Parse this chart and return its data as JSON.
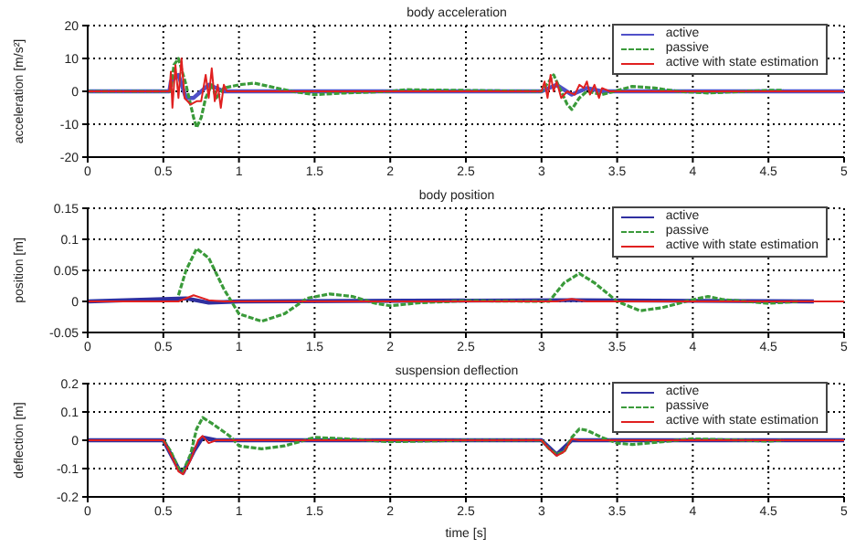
{
  "chart_data": [
    {
      "type": "line",
      "title": "body acceleration",
      "ylabel": "acceleration [m/s²]",
      "xlim": [
        0,
        5
      ],
      "xticks": [
        0,
        0.5,
        1,
        1.5,
        2,
        2.5,
        3,
        3.5,
        4,
        4.5,
        5
      ],
      "ylim": [
        -20,
        20
      ],
      "yticks": [
        -20,
        -10,
        0,
        10,
        20
      ],
      "grid": true,
      "legend": "top right",
      "series": [
        {
          "name": "active",
          "color": "#5050c8",
          "line_style": "solid",
          "x": [
            0,
            0.54,
            0.55,
            0.6,
            0.65,
            0.7,
            0.8,
            0.9,
            1,
            3,
            3.1,
            3.2,
            3.3,
            3.4,
            5
          ],
          "values": [
            0,
            0,
            3,
            5,
            -2,
            -2,
            2,
            0,
            0,
            0,
            2,
            -1,
            1,
            0,
            0
          ]
        },
        {
          "name": "passive",
          "color": "#3a9a3a",
          "line_style": "dashed",
          "x": [
            0,
            0.55,
            0.57,
            0.6,
            0.65,
            0.7,
            0.72,
            0.75,
            0.78,
            0.82,
            0.85,
            0.9,
            1,
            1.1,
            1.2,
            1.35,
            1.5,
            1.7,
            2,
            2.1,
            3,
            3.05,
            3.08,
            3.12,
            3.17,
            3.2,
            3.25,
            3.3,
            3.4,
            3.6,
            3.75,
            3.9,
            4.1,
            4.5,
            4.6
          ],
          "values": [
            0,
            0,
            8,
            10,
            2,
            -8,
            -11,
            -8,
            -2,
            2,
            -2,
            1,
            2,
            2.5,
            1.5,
            0,
            -1,
            -0.5,
            0,
            0.5,
            0,
            3,
            5,
            1,
            -4,
            -5.5,
            -2,
            0,
            -1,
            1.5,
            1,
            0,
            -0.5,
            0.3,
            0.3
          ]
        },
        {
          "name": "active with state estimation",
          "color": "#e02020",
          "line_style": "solid",
          "x": [
            0,
            0.54,
            0.55,
            0.56,
            0.58,
            0.6,
            0.62,
            0.64,
            0.68,
            0.72,
            0.75,
            0.78,
            0.8,
            0.82,
            0.84,
            0.86,
            0.88,
            0.9,
            0.92,
            1,
            3,
            3.02,
            3.04,
            3.06,
            3.08,
            3.1,
            3.13,
            3.17,
            3.22,
            3.25,
            3.28,
            3.3,
            3.32,
            3.35,
            3.38,
            3.4,
            3.45,
            5
          ],
          "values": [
            0,
            0,
            6,
            -5,
            8,
            -2,
            10,
            -2,
            -4,
            -3,
            -3,
            5,
            -2,
            7,
            -3,
            2,
            -5,
            2,
            0,
            0,
            0,
            3,
            -2,
            5,
            0,
            3,
            -2,
            0,
            -1,
            2,
            1,
            3,
            -1,
            2,
            -2,
            1,
            0,
            0
          ]
        }
      ]
    },
    {
      "type": "line",
      "title": "body position",
      "ylabel": "position [m]",
      "xlim": [
        0,
        5
      ],
      "xticks": [
        0,
        0.5,
        1,
        1.5,
        2,
        2.5,
        3,
        3.5,
        4,
        4.5,
        5
      ],
      "ylim": [
        -0.05,
        0.15
      ],
      "yticks": [
        -0.05,
        0,
        0.05,
        0.1,
        0.15
      ],
      "grid": true,
      "legend": "top right",
      "series": [
        {
          "name": "active",
          "color": "#3030a0",
          "line_style": "solid",
          "x": [
            0,
            0.65,
            0.8,
            1,
            3.2,
            4.8
          ],
          "values": [
            0,
            0.005,
            -0.002,
            0,
            0.002,
            0
          ]
        },
        {
          "name": "passive",
          "color": "#3a9a3a",
          "line_style": "dashed",
          "x": [
            0.6,
            0.65,
            0.72,
            0.8,
            0.9,
            1,
            1.15,
            1.3,
            1.45,
            1.6,
            1.75,
            1.9,
            2,
            2.2,
            2.5,
            3.05,
            3.15,
            3.25,
            3.35,
            3.5,
            3.65,
            3.8,
            4,
            4.1,
            4.2,
            4.5,
            4.7
          ],
          "values": [
            0.01,
            0.05,
            0.085,
            0.07,
            0.02,
            -0.02,
            -0.032,
            -0.02,
            0.005,
            0.012,
            0.008,
            -0.003,
            -0.007,
            -0.002,
            0.001,
            0,
            0.03,
            0.045,
            0.03,
            0,
            -0.015,
            -0.01,
            0.003,
            0.008,
            0.003,
            -0.003,
            0
          ]
        },
        {
          "name": "active with state estimation",
          "color": "#e02020",
          "line_style": "solid",
          "x": [
            0,
            0.6,
            0.7,
            0.8,
            0.9,
            3.1,
            3.2,
            3.3,
            5
          ],
          "values": [
            0,
            0,
            0.01,
            0.002,
            0,
            0,
            0.004,
            0,
            0
          ]
        }
      ]
    },
    {
      "type": "line",
      "title": "suspension deflection",
      "xlabel": "time [s]",
      "ylabel": "deflection [m]",
      "xlim": [
        0,
        5
      ],
      "xticks": [
        0,
        0.5,
        1,
        1.5,
        2,
        2.5,
        3,
        3.5,
        4,
        4.5,
        5
      ],
      "ylim": [
        -0.2,
        0.2
      ],
      "yticks": [
        -0.2,
        -0.1,
        0,
        0.1,
        0.2
      ],
      "grid": true,
      "legend": "top right",
      "series": [
        {
          "name": "active",
          "color": "#3030a0",
          "line_style": "solid",
          "x": [
            0,
            0.5,
            0.6,
            0.63,
            0.7,
            0.76,
            0.85,
            3,
            3.1,
            3.2,
            5
          ],
          "values": [
            0,
            0,
            -0.1,
            -0.115,
            -0.04,
            0.01,
            0,
            0,
            -0.05,
            0,
            0
          ]
        },
        {
          "name": "passive",
          "color": "#3a9a3a",
          "line_style": "dashed",
          "x": [
            0.5,
            0.55,
            0.6,
            0.63,
            0.68,
            0.72,
            0.76,
            0.82,
            0.9,
            0.95,
            1,
            1.15,
            1.3,
            1.5,
            1.7,
            2,
            2.5,
            3,
            3.05,
            3.1,
            3.15,
            3.2,
            3.25,
            3.3,
            3.4,
            3.5,
            3.6,
            3.8,
            4,
            4.5,
            4.6
          ],
          "values": [
            0,
            -0.04,
            -0.1,
            -0.11,
            -0.05,
            0.04,
            0.08,
            0.06,
            0.03,
            0.01,
            -0.02,
            -0.03,
            -0.02,
            0.01,
            0.005,
            -0.005,
            0,
            0,
            -0.03,
            -0.05,
            -0.04,
            0.01,
            0.04,
            0.035,
            0.01,
            -0.01,
            -0.015,
            -0.005,
            0.005,
            -0.003,
            0
          ]
        },
        {
          "name": "active with state estimation",
          "color": "#e02020",
          "line_style": "solid",
          "x": [
            0,
            0.5,
            0.55,
            0.6,
            0.63,
            0.68,
            0.73,
            0.76,
            0.8,
            0.85,
            3,
            3.05,
            3.1,
            3.15,
            3.2,
            3.25,
            5
          ],
          "values": [
            0,
            0,
            -0.05,
            -0.11,
            -0.12,
            -0.07,
            0,
            0.015,
            -0.01,
            0,
            0,
            -0.03,
            -0.055,
            -0.04,
            0.005,
            0,
            0
          ]
        }
      ]
    }
  ]
}
